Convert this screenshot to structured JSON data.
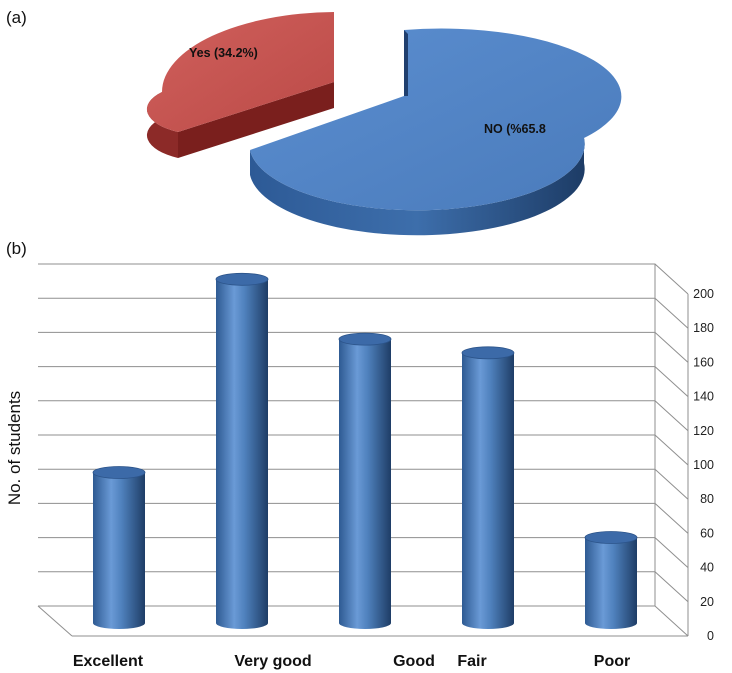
{
  "chart_data": [
    {
      "panel_label": "(a)",
      "type": "pie",
      "slices": [
        {
          "label": "Yes (34.2%)",
          "value": 34.2,
          "color": "#c0504d",
          "exploded": true
        },
        {
          "label": "NO (%65.8",
          "value": 65.8,
          "color": "#4f81bd",
          "exploded": false
        }
      ]
    },
    {
      "panel_label": "(b)",
      "type": "bar",
      "style": "3d-cylinder",
      "categories": [
        "Excellent",
        "Very good",
        "Good",
        "Fair",
        "Poor"
      ],
      "values": [
        88,
        201,
        166,
        158,
        50
      ],
      "ylabel": "No. of students",
      "ylim": [
        0,
        200
      ],
      "yticks": [
        "0",
        "20",
        "40",
        "60",
        "80",
        "100",
        "120",
        "140",
        "160",
        "180",
        "200"
      ],
      "grid": true,
      "axis_side": "right",
      "bar_color": "#4f81bd"
    }
  ]
}
